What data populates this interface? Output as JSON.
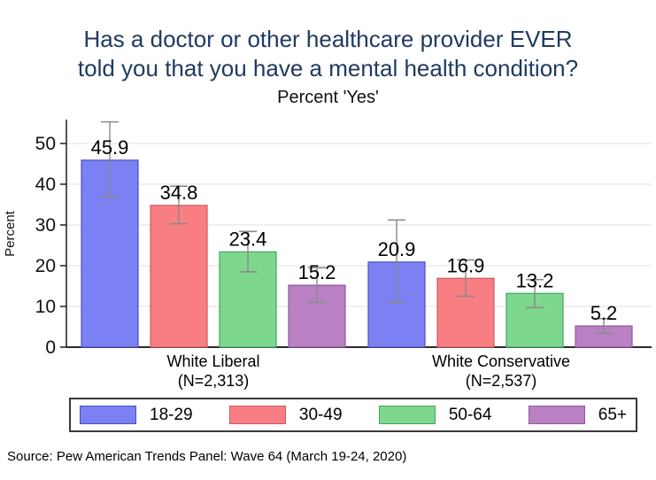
{
  "title": {
    "lines": [
      "Has a doctor or other healthcare provider EVER",
      "told you that you have a mental health condition?"
    ]
  },
  "subtitle": "Percent 'Yes'",
  "source": "Source: Pew American Trends Panel: Wave 64 (March 19-24, 2020)",
  "colors": {
    "title_text": "#203a60",
    "grid": "#ebebeb",
    "axis": "#2b2b2b",
    "error_bar": "#8a8a8a"
  },
  "chart_data": {
    "type": "bar",
    "title": "Has a doctor or other healthcare provider EVER told you that you have a mental health condition?",
    "subtitle": "Percent 'Yes'",
    "xlabel": "",
    "ylabel": "Percent",
    "ylim": [
      0,
      55
    ],
    "yticks": [
      0,
      10,
      20,
      30,
      40,
      50
    ],
    "grid": true,
    "legend_position": "bottom",
    "error_bars": true,
    "groups": [
      {
        "label": "White Liberal",
        "n": "(N=2,313)"
      },
      {
        "label": "White Conservative",
        "n": "(N=2,537)"
      }
    ],
    "series": [
      {
        "name": "18-29",
        "fill": "#7b80f2",
        "border": "#4a50c0",
        "values": [
          45.9,
          20.9
        ],
        "ci_low": [
          37.0,
          11.0
        ],
        "ci_high": [
          55.3,
          31.2
        ]
      },
      {
        "name": "30-49",
        "fill": "#f97e83",
        "border": "#cc5a60",
        "values": [
          34.8,
          16.9
        ],
        "ci_low": [
          30.3,
          12.5
        ],
        "ci_high": [
          39.5,
          21.4
        ]
      },
      {
        "name": "50-64",
        "fill": "#7dd88e",
        "border": "#43a463",
        "values": [
          23.4,
          13.2
        ],
        "ci_low": [
          18.5,
          9.7
        ],
        "ci_high": [
          28.4,
          16.6
        ]
      },
      {
        "name": "65+",
        "fill": "#b981c4",
        "border": "#8b5a9b",
        "values": [
          15.2,
          5.2
        ],
        "ci_low": [
          11.0,
          3.4
        ],
        "ci_high": [
          19.5,
          7.0
        ]
      }
    ]
  }
}
